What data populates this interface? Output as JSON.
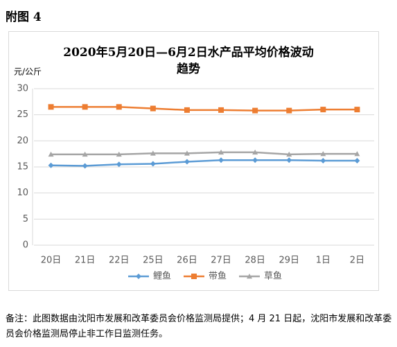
{
  "heading": "附图 4",
  "chart_data": {
    "type": "line",
    "title": "2020年5月20日—6月2日水产品平均价格波动趋势",
    "y_label": "元/公斤",
    "categories": [
      "20日",
      "21日",
      "22日",
      "25日",
      "26日",
      "27日",
      "28日",
      "29日",
      "1日",
      "2日"
    ],
    "series": [
      {
        "name": "鲤鱼",
        "color": "#5b9bd5",
        "marker": "diamond",
        "values": [
          15.3,
          15.2,
          15.5,
          15.6,
          16.0,
          16.3,
          16.3,
          16.3,
          16.2,
          16.2
        ]
      },
      {
        "name": "带鱼",
        "color": "#ed7d31",
        "marker": "square",
        "values": [
          26.5,
          26.5,
          26.5,
          26.2,
          25.9,
          25.9,
          25.8,
          25.8,
          26.0,
          26.0
        ]
      },
      {
        "name": "草鱼",
        "color": "#a5a5a5",
        "marker": "triangle",
        "values": [
          17.4,
          17.4,
          17.4,
          17.6,
          17.6,
          17.8,
          17.8,
          17.4,
          17.5,
          17.5
        ]
      }
    ],
    "ylim": [
      0,
      30
    ],
    "yticks": [
      0,
      5,
      10,
      15,
      20,
      25,
      30
    ],
    "grid": true
  },
  "note": "备注：此图数据由沈阳市发展和改革委员会价格监测局提供；4 月 21 日起，沈阳市发展和改革委员会价格监测局停止非工作日监测任务。"
}
